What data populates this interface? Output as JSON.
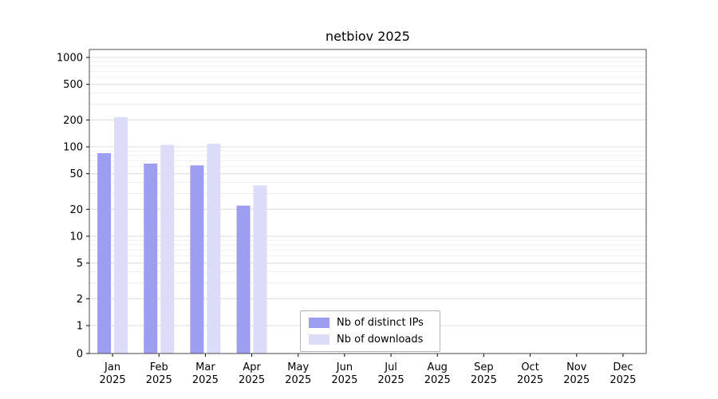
{
  "chart_data": {
    "type": "bar",
    "title": "netbiov 2025",
    "categories": [
      "Jan",
      "Feb",
      "Mar",
      "Apr",
      "May",
      "Jun",
      "Jul",
      "Aug",
      "Sep",
      "Oct",
      "Nov",
      "Dec"
    ],
    "year_label": "2025",
    "series": [
      {
        "name": "Nb of distinct IPs",
        "color": "#9e9ef0",
        "values": [
          85,
          65,
          62,
          22,
          0,
          0,
          0,
          0,
          0,
          0,
          0,
          0
        ]
      },
      {
        "name": "Nb of downloads",
        "color": "#dcdcf8",
        "values": [
          215,
          105,
          108,
          37,
          0,
          0,
          0,
          0,
          0,
          0,
          0,
          0
        ]
      }
    ],
    "y_ticks": [
      0,
      1,
      2,
      5,
      10,
      20,
      50,
      100,
      200,
      500,
      1000
    ],
    "y_scale": "log",
    "ylim": [
      0,
      1250
    ],
    "xlabel": "",
    "ylabel": "",
    "grid": "horizontal",
    "legend_position": "bottom-center"
  }
}
